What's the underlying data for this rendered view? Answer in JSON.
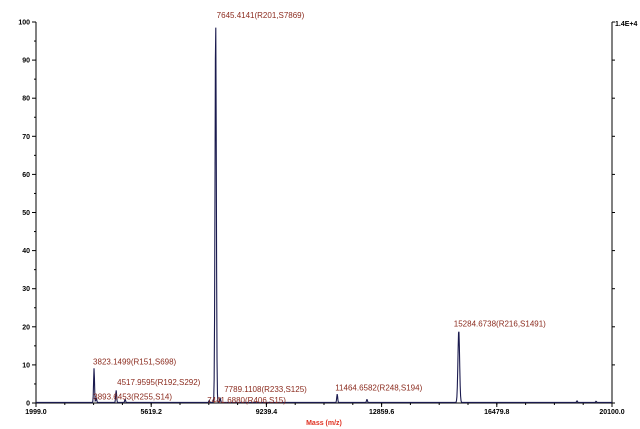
{
  "chart_data": {
    "type": "line",
    "title": "",
    "xlabel": "Mass (m/z)",
    "ylabel": "",
    "xlim": [
      1999.0,
      20100.0
    ],
    "ylim": [
      0,
      100
    ],
    "x_ticks": [
      "1999.0",
      "5619.2",
      "9239.4",
      "12859.6",
      "16479.8",
      "20100.0"
    ],
    "y_ticks": [
      "0",
      "10",
      "20",
      "30",
      "40",
      "50",
      "60",
      "70",
      "80",
      "90",
      "100"
    ],
    "right_axis_label": "1.4E+4",
    "grid": false,
    "series": [
      {
        "peaks": [
          {
            "x": 3823.1499,
            "y": 9
          },
          {
            "x": 3893.6453,
            "y": 1.2
          },
          {
            "x": 4517.9595,
            "y": 3.2
          },
          {
            "x": 4800,
            "y": 0.8
          },
          {
            "x": 7441.688,
            "y": 0.5
          },
          {
            "x": 7645.4141,
            "y": 100
          },
          {
            "x": 7789.1108,
            "y": 1.0
          },
          {
            "x": 11464.6582,
            "y": 2.2
          },
          {
            "x": 12400,
            "y": 0.8
          },
          {
            "x": 15284.6738,
            "y": 19
          },
          {
            "x": 19000,
            "y": 0.4
          },
          {
            "x": 19600,
            "y": 0.3
          }
        ]
      }
    ],
    "annotations": [
      {
        "text": "7645.4141(R201,S7869)",
        "x": 7645.4141,
        "y": 100
      },
      {
        "text": "3823.1499(R151,S698)",
        "x": 3823.1499,
        "y": 9
      },
      {
        "text": "4517.9595(R192,S292)",
        "x": 4517.9595,
        "y": 3.2
      },
      {
        "text": "3893.6453(R255,S14)",
        "x": 3893.6453,
        "y": 1.2
      },
      {
        "text": "7789.1108(R233,S125)",
        "x": 7789.1108,
        "y": 1.0
      },
      {
        "text": "7441.6880(R406,S15)",
        "x": 7441.688,
        "y": 0.5
      },
      {
        "text": "11464.6582(R248,S194)",
        "x": 11464.6582,
        "y": 2.2
      },
      {
        "text": "15284.6738(R216,S1491)",
        "x": 15284.6738,
        "y": 19
      }
    ],
    "colors": {
      "line": "#1a1a4e",
      "label": "#8b2b1e",
      "axis_title": "#e03020",
      "axes": "#000000"
    }
  }
}
